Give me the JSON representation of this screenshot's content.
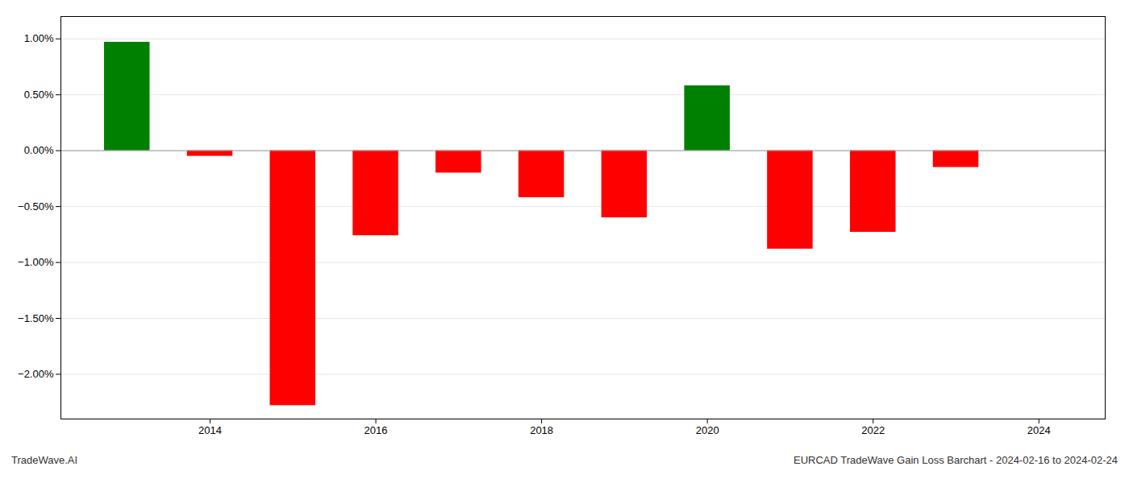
{
  "chart_data": {
    "type": "bar",
    "x": [
      2013,
      2014,
      2015,
      2016,
      2017,
      2018,
      2019,
      2020,
      2021,
      2022,
      2023
    ],
    "values": [
      0.97,
      -0.05,
      -2.28,
      -0.76,
      -0.2,
      -0.42,
      -0.6,
      0.58,
      -0.88,
      -0.73,
      -0.15
    ],
    "colors": [
      "#008000",
      "#ff0000",
      "#ff0000",
      "#ff0000",
      "#ff0000",
      "#ff0000",
      "#ff0000",
      "#008000",
      "#ff0000",
      "#ff0000",
      "#ff0000"
    ],
    "xlim": [
      2012.2,
      2024.8
    ],
    "xticks": [
      2014,
      2016,
      2018,
      2020,
      2022,
      2024
    ],
    "ylim": [
      -2.4,
      1.2
    ],
    "yticks": [
      {
        "value": -2.0,
        "label": "−2.00%"
      },
      {
        "value": -1.5,
        "label": "−1.50%"
      },
      {
        "value": -1.0,
        "label": "−1.00%"
      },
      {
        "value": -0.5,
        "label": "−0.50%"
      },
      {
        "value": 0,
        "label": "0.00%"
      },
      {
        "value": 0.5,
        "label": "0.50%"
      },
      {
        "value": 1.0,
        "label": "1.00%"
      }
    ],
    "grid": true,
    "annotations": [
      "TradeWave.AI",
      "EURCAD TradeWave Gain Loss Barchart - 2024-02-16 to 2024-02-24"
    ]
  }
}
